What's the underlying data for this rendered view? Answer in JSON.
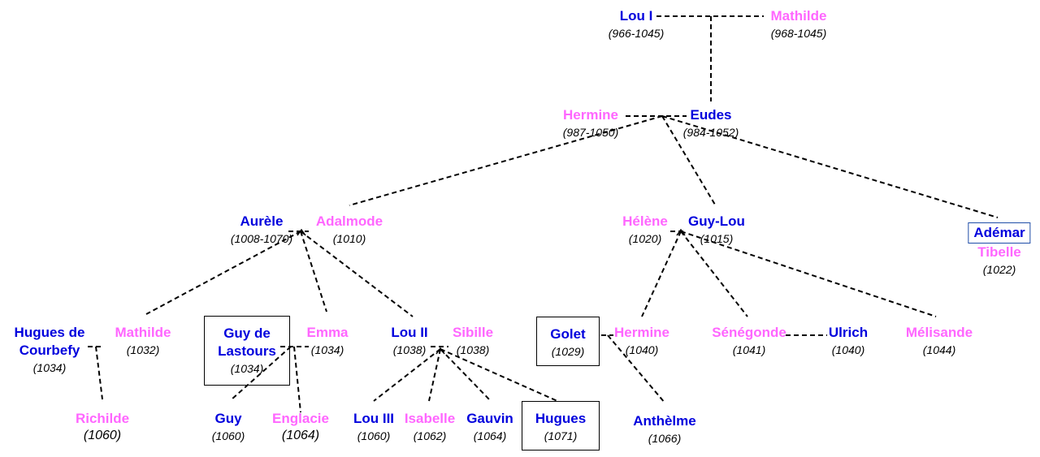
{
  "colors": {
    "male": "#0000dd",
    "female": "#ff66ff",
    "line": "#000000"
  },
  "people": {
    "lou1": {
      "name": "Lou I",
      "dates": "(966-1045)"
    },
    "mathilde1": {
      "name": "Mathilde",
      "dates": "(968-1045)"
    },
    "hermine1": {
      "name": "Hermine",
      "dates": "(987-1050)"
    },
    "eudes": {
      "name": "Eudes",
      "dates": "(984-1052)"
    },
    "aurele": {
      "name": "Aurèle",
      "dates": "(1008-1070)"
    },
    "adalmode": {
      "name": "Adalmode",
      "dates": "(1010)"
    },
    "helene": {
      "name": "Hélène",
      "dates": "(1020)"
    },
    "guylou": {
      "name": "Guy-Lou",
      "dates": "(1015)"
    },
    "ademar": {
      "name": "Adémar"
    },
    "tibelle": {
      "name": "Tibelle",
      "dates": "(1022)"
    },
    "hugues_courbefy": {
      "name_line1": "Hugues de",
      "name_line2": "Courbefy",
      "dates": "(1034)"
    },
    "mathilde2": {
      "name": "Mathilde",
      "dates": "(1032)"
    },
    "guy_lastours": {
      "name_line1": "Guy de",
      "name_line2": "Lastours",
      "dates": "(1034)"
    },
    "emma": {
      "name": "Emma",
      "dates": "(1034)"
    },
    "lou2": {
      "name": "Lou II",
      "dates": "(1038)"
    },
    "sibille": {
      "name": "Sibille",
      "dates": "(1038)"
    },
    "golet": {
      "name": "Golet",
      "dates": "(1029)"
    },
    "hermine2": {
      "name": "Hermine",
      "dates": "(1040)"
    },
    "senegonde": {
      "name": "Sénégonde",
      "dates": "(1041)"
    },
    "ulrich": {
      "name": "Ulrich",
      "dates": "(1040)"
    },
    "melisande": {
      "name": "Mélisande",
      "dates": "(1044)"
    },
    "richilde": {
      "name": "Richilde",
      "dates": "(1060)"
    },
    "guy": {
      "name": "Guy",
      "dates": "(1060)"
    },
    "englacie": {
      "name": "Englacie",
      "dates": "(1064)"
    },
    "lou3": {
      "name": "Lou III",
      "dates": "(1060)"
    },
    "isabelle": {
      "name": "Isabelle",
      "dates": "(1062)"
    },
    "gauvin": {
      "name": "Gauvin",
      "dates": "(1064)"
    },
    "hugues": {
      "name": "Hugues",
      "dates": "(1071)"
    },
    "anthelme": {
      "name": "Anthèlme",
      "dates": "(1066)"
    }
  }
}
